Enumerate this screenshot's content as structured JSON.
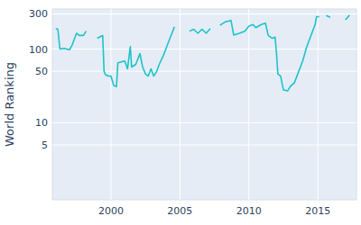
{
  "chart_data": {
    "type": "line",
    "y_label": "World Ranking",
    "x": [
      1996.0,
      1996.15,
      1996.3,
      1996.6,
      1997.0,
      1997.2,
      1997.5,
      1997.7,
      1998.0,
      1998.2,
      null,
      1999.0,
      1999.4,
      1999.5,
      1999.6,
      1999.8,
      2000.0,
      2000.2,
      2000.4,
      2000.5,
      2001.0,
      2001.2,
      2001.4,
      2001.5,
      2001.8,
      2002.1,
      2002.3,
      2002.5,
      2002.7,
      2002.9,
      2003.1,
      2003.3,
      2003.5,
      2003.8,
      2004.1,
      2004.4,
      2004.6,
      null,
      2005.7,
      2006.0,
      2006.3,
      2006.6,
      2006.9,
      2007.2,
      null,
      2007.9,
      2008.3,
      2008.7,
      2008.9,
      2009.3,
      2009.7,
      2010.0,
      2010.3,
      2010.5,
      2010.9,
      2011.2,
      2011.4,
      2011.7,
      2011.9,
      2012.0,
      2012.1,
      2012.3,
      2012.5,
      2012.8,
      2013.0,
      2013.3,
      2013.6,
      2013.9,
      2014.2,
      2014.5,
      2014.8,
      2014.9,
      2015.1,
      null,
      2015.6,
      2015.9,
      null,
      2017.0,
      2017.3
    ],
    "values": [
      190,
      186,
      100,
      102,
      98,
      115,
      164,
      153,
      153,
      175,
      null,
      140,
      153,
      50,
      45,
      43,
      43,
      32,
      31,
      65,
      69,
      54,
      108,
      57,
      62,
      87,
      57,
      46,
      43,
      54,
      43,
      49,
      62,
      82,
      115,
      160,
      200,
      null,
      175,
      186,
      164,
      186,
      164,
      190,
      null,
      210,
      235,
      245,
      155,
      164,
      175,
      205,
      215,
      195,
      215,
      225,
      153,
      140,
      145,
      87,
      46,
      43,
      28,
      27,
      31,
      35,
      49,
      69,
      108,
      153,
      215,
      275,
      275,
      null,
      285,
      270,
      null,
      250,
      290
    ],
    "color": "#1cc4c9",
    "xlim": [
      1995.75,
      2017.8
    ],
    "ylim": [
      0.9,
      350
    ],
    "xticks": [
      2000,
      2005,
      2010,
      2015
    ],
    "yticks": [
      5,
      10,
      50,
      100,
      300
    ],
    "log": "y",
    "grid": true
  }
}
